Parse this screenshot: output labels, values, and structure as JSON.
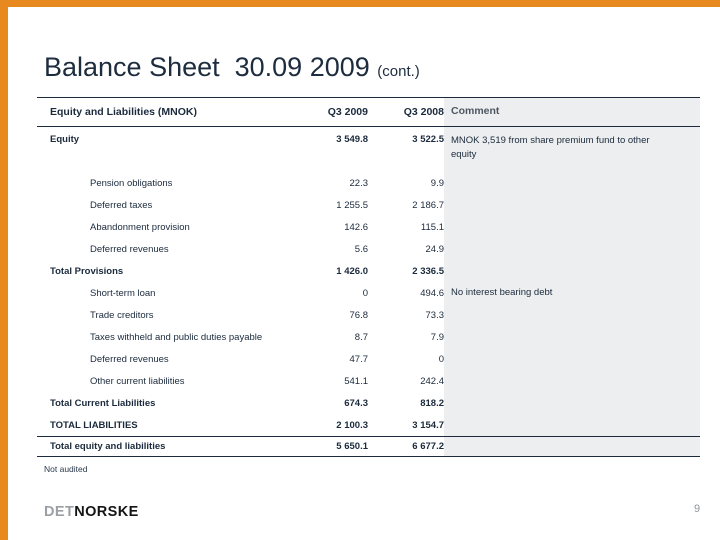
{
  "slide": {
    "title": "Balance Sheet  30.09 2009 ",
    "title_suffix": "(cont.)",
    "footnote": "Not audited",
    "page_number": "9",
    "logo": {
      "part1": "DET",
      "part2": "NORSKE"
    },
    "accent_color": "#E7891E",
    "comment_panel_color": "#EDEEEF",
    "text_color": "#1b2a3c"
  },
  "table": {
    "headers": {
      "label": "Equity and Liabilities (MNOK)",
      "q3_2009": "Q3 2009",
      "q3_2008": "Q3 2008",
      "comment": "Comment"
    },
    "rows": [
      {
        "label": "Equity",
        "q3_2009": "3 549.8",
        "q3_2008": "3 522.5",
        "comment": "MNOK 3,519 from share premium fund to other equity",
        "style": "section"
      },
      {
        "label": "Pension obligations",
        "q3_2009": "22.3",
        "q3_2008": "9.9",
        "comment": "",
        "style": "item"
      },
      {
        "label": "Deferred taxes",
        "q3_2009": "1 255.5",
        "q3_2008": "2 186.7",
        "comment": "",
        "style": "item"
      },
      {
        "label": "Abandonment provision",
        "q3_2009": "142.6",
        "q3_2008": "115.1",
        "comment": "",
        "style": "item"
      },
      {
        "label": "Deferred revenues",
        "q3_2009": "5.6",
        "q3_2008": "24.9",
        "comment": "",
        "style": "item"
      },
      {
        "label": "Total Provisions",
        "q3_2009": "1 426.0",
        "q3_2008": "2 336.5",
        "comment": "",
        "style": "total"
      },
      {
        "label": "Short-term loan",
        "q3_2009": "0",
        "q3_2008": "494.6",
        "comment": "No interest bearing debt",
        "style": "item"
      },
      {
        "label": "Trade creditors",
        "q3_2009": "76.8",
        "q3_2008": "73.3",
        "comment": "",
        "style": "item"
      },
      {
        "label": "Taxes withheld and public duties payable",
        "q3_2009": "8.7",
        "q3_2008": "7.9",
        "comment": "",
        "style": "item"
      },
      {
        "label": "Deferred revenues",
        "q3_2009": "47.7",
        "q3_2008": "0",
        "comment": "",
        "style": "item"
      },
      {
        "label": "Other current liabilities",
        "q3_2009": "541.1",
        "q3_2008": "242.4",
        "comment": "",
        "style": "item"
      },
      {
        "label": "Total Current Liabilities",
        "q3_2009": "674.3",
        "q3_2008": "818.2",
        "comment": "",
        "style": "total"
      },
      {
        "label": "TOTAL LIABILITIES",
        "q3_2009": "2 100.3",
        "q3_2008": "3 154.7",
        "comment": "",
        "style": "total"
      },
      {
        "label": "Total equity and liabilities",
        "q3_2009": "5 650.1",
        "q3_2008": "6 677.2",
        "comment": "",
        "style": "grand"
      }
    ]
  }
}
